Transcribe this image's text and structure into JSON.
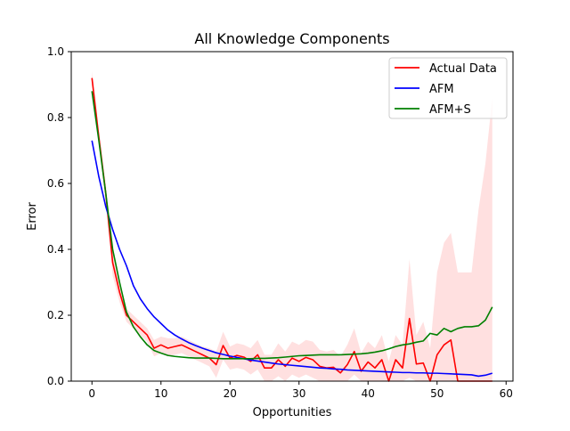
{
  "chart_data": {
    "type": "line",
    "title": "All Knowledge Components",
    "xlabel": "Opportunities",
    "ylabel": "Error",
    "xlim": [
      -3,
      61
    ],
    "ylim": [
      0.0,
      1.0
    ],
    "xticks": [
      0,
      10,
      20,
      30,
      40,
      50,
      60
    ],
    "yticks": [
      0.0,
      0.2,
      0.4,
      0.6,
      0.8,
      1.0
    ],
    "ytick_labels": [
      "0.0",
      "0.2",
      "0.4",
      "0.6",
      "0.8",
      "1.0"
    ],
    "grid": false,
    "legend_position": "top-right",
    "x": [
      0,
      1,
      2,
      3,
      4,
      5,
      6,
      7,
      8,
      9,
      10,
      11,
      12,
      13,
      14,
      15,
      16,
      17,
      18,
      19,
      20,
      21,
      22,
      23,
      24,
      25,
      26,
      27,
      28,
      29,
      30,
      31,
      32,
      33,
      34,
      35,
      36,
      37,
      38,
      39,
      40,
      41,
      42,
      43,
      44,
      45,
      46,
      47,
      48,
      49,
      50,
      51,
      52,
      53,
      54,
      55,
      56,
      57,
      58
    ],
    "series": [
      {
        "name": "Actual Data",
        "color": "#ff0000",
        "values": [
          0.92,
          0.74,
          0.57,
          0.36,
          0.27,
          0.2,
          0.18,
          0.16,
          0.14,
          0.1,
          0.11,
          0.1,
          0.105,
          0.11,
          0.1,
          0.09,
          0.08,
          0.07,
          0.05,
          0.108,
          0.07,
          0.078,
          0.073,
          0.06,
          0.08,
          0.04,
          0.04,
          0.065,
          0.045,
          0.07,
          0.06,
          0.072,
          0.065,
          0.045,
          0.04,
          0.042,
          0.025,
          0.05,
          0.09,
          0.03,
          0.058,
          0.04,
          0.065,
          0.0,
          0.065,
          0.04,
          0.19,
          0.052,
          0.055,
          0.0,
          0.08,
          0.11,
          0.125,
          0.0,
          0.0,
          0.0,
          0.0,
          0.0,
          0.0
        ],
        "band_upper": [
          0.94,
          0.76,
          0.6,
          0.4,
          0.3,
          0.22,
          0.2,
          0.18,
          0.16,
          0.125,
          0.135,
          0.13,
          0.13,
          0.135,
          0.125,
          0.115,
          0.105,
          0.1,
          0.09,
          0.15,
          0.105,
          0.115,
          0.11,
          0.1,
          0.125,
          0.08,
          0.08,
          0.115,
          0.09,
          0.12,
          0.11,
          0.125,
          0.12,
          0.095,
          0.09,
          0.095,
          0.075,
          0.11,
          0.16,
          0.085,
          0.12,
          0.1,
          0.14,
          0.06,
          0.14,
          0.11,
          0.37,
          0.14,
          0.18,
          0.1,
          0.33,
          0.42,
          0.45,
          0.33,
          0.33,
          0.33,
          0.52,
          0.66,
          0.86
        ],
        "band_lower": [
          0.9,
          0.72,
          0.54,
          0.32,
          0.24,
          0.18,
          0.16,
          0.14,
          0.12,
          0.075,
          0.085,
          0.075,
          0.08,
          0.085,
          0.075,
          0.065,
          0.055,
          0.045,
          0.01,
          0.065,
          0.035,
          0.04,
          0.035,
          0.02,
          0.035,
          0.0,
          0.0,
          0.015,
          0.0,
          0.02,
          0.01,
          0.02,
          0.01,
          0.0,
          0.0,
          0.0,
          0.0,
          0.0,
          0.02,
          0.0,
          0.0,
          0.0,
          0.0,
          0.0,
          0.0,
          0.0,
          0.01,
          0.0,
          0.0,
          0.0,
          0.0,
          0.0,
          0.0,
          0.0,
          0.0,
          0.0,
          0.0,
          0.0,
          0.0
        ]
      },
      {
        "name": "AFM",
        "color": "#0000ff",
        "values": [
          0.73,
          0.62,
          0.53,
          0.46,
          0.4,
          0.35,
          0.29,
          0.25,
          0.22,
          0.195,
          0.175,
          0.155,
          0.14,
          0.128,
          0.117,
          0.108,
          0.1,
          0.093,
          0.086,
          0.081,
          0.076,
          0.072,
          0.068,
          0.064,
          0.061,
          0.058,
          0.055,
          0.052,
          0.05,
          0.048,
          0.046,
          0.044,
          0.042,
          0.04,
          0.039,
          0.037,
          0.036,
          0.034,
          0.033,
          0.032,
          0.031,
          0.03,
          0.029,
          0.028,
          0.027,
          0.026,
          0.026,
          0.025,
          0.025,
          0.024,
          0.024,
          0.023,
          0.022,
          0.021,
          0.02,
          0.019,
          0.015,
          0.018,
          0.024
        ]
      },
      {
        "name": "AFM+S",
        "color": "#008000",
        "values": [
          0.88,
          0.73,
          0.57,
          0.4,
          0.3,
          0.21,
          0.165,
          0.135,
          0.11,
          0.093,
          0.085,
          0.078,
          0.075,
          0.073,
          0.071,
          0.07,
          0.07,
          0.07,
          0.069,
          0.068,
          0.068,
          0.068,
          0.068,
          0.068,
          0.069,
          0.069,
          0.07,
          0.071,
          0.073,
          0.075,
          0.077,
          0.078,
          0.079,
          0.08,
          0.08,
          0.08,
          0.08,
          0.081,
          0.082,
          0.083,
          0.085,
          0.088,
          0.092,
          0.098,
          0.105,
          0.11,
          0.113,
          0.118,
          0.122,
          0.145,
          0.14,
          0.16,
          0.15,
          0.16,
          0.165,
          0.165,
          0.168,
          0.185,
          0.225
        ]
      }
    ]
  }
}
